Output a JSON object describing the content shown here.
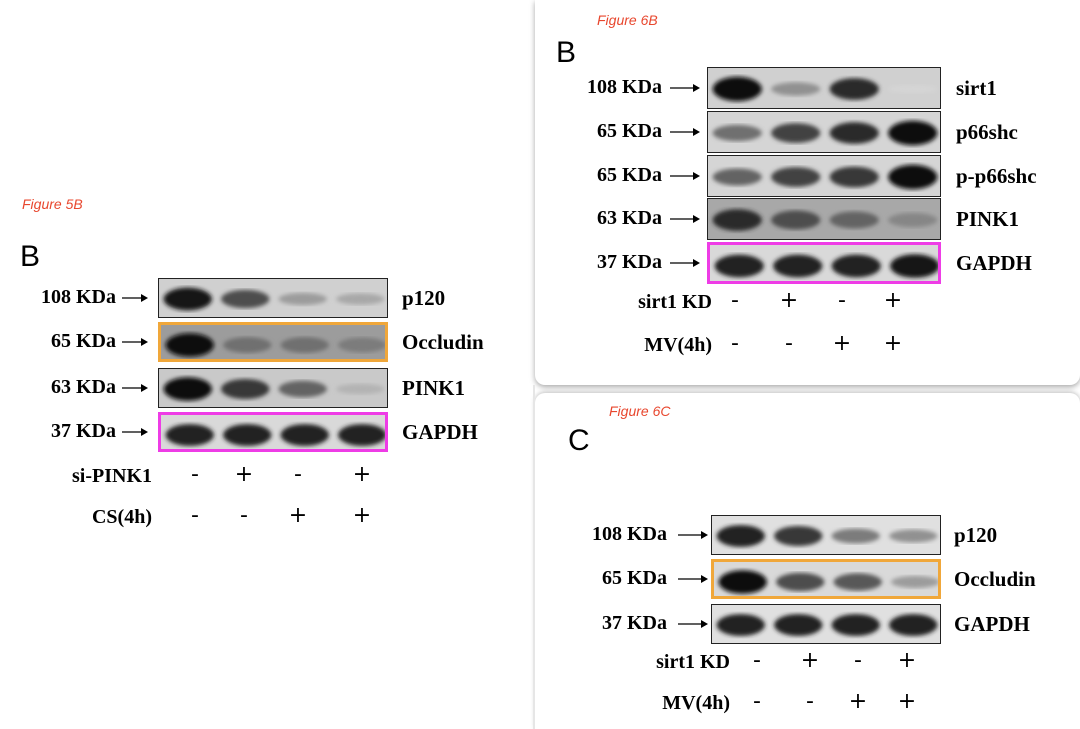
{
  "figure_5b": {
    "ref": "Figure 5B",
    "letter": "B",
    "rows": [
      {
        "kda": "108 KDa",
        "protein": "p120",
        "bands": [
          0.95,
          0.7,
          0.35,
          0.3
        ],
        "bg": 0.12,
        "highlight": "none"
      },
      {
        "kda": "65 KDa",
        "protein": "Occludin",
        "bands": [
          1.0,
          0.55,
          0.55,
          0.5
        ],
        "bg": 0.35,
        "highlight": "orange"
      },
      {
        "kda": "63 KDa",
        "protein": "PINK1",
        "bands": [
          1.0,
          0.8,
          0.6,
          0.25
        ],
        "bg": 0.15,
        "highlight": "none"
      },
      {
        "kda": "37 KDa",
        "protein": "GAPDH",
        "bands": [
          0.9,
          0.9,
          0.9,
          0.9
        ],
        "bg": 0.08,
        "highlight": "magenta"
      }
    ],
    "conditions": [
      {
        "label": "si-PINK1",
        "signs": [
          "-",
          "+",
          "-",
          "+"
        ]
      },
      {
        "label": "CS(4h)",
        "signs": [
          "-",
          "-",
          "+",
          "+"
        ]
      }
    ]
  },
  "figure_6b": {
    "ref": "Figure 6B",
    "letter": "B",
    "rows": [
      {
        "kda": "108 KDa",
        "protein": "sirt1",
        "bands": [
          1.0,
          0.4,
          0.85,
          0.1
        ],
        "bg": 0.12,
        "highlight": "none"
      },
      {
        "kda": "65 KDa",
        "protein": "p66shc",
        "bands": [
          0.55,
          0.75,
          0.85,
          1.0
        ],
        "bg": 0.1,
        "highlight": "none"
      },
      {
        "kda": "65 KDa",
        "protein": "p-p66shc",
        "bands": [
          0.6,
          0.75,
          0.8,
          1.0
        ],
        "bg": 0.1,
        "highlight": "none"
      },
      {
        "kda": "63 KDa",
        "protein": "PINK1",
        "bands": [
          0.85,
          0.7,
          0.6,
          0.45
        ],
        "bg": 0.3,
        "highlight": "none"
      },
      {
        "kda": "37 KDa",
        "protein": "GAPDH",
        "bands": [
          0.9,
          0.9,
          0.9,
          0.95
        ],
        "bg": 0.08,
        "highlight": "magenta"
      }
    ],
    "conditions": [
      {
        "label": "sirt1 KD",
        "signs": [
          "-",
          "+",
          "-",
          "+"
        ]
      },
      {
        "label": "MV(4h)",
        "signs": [
          "-",
          "-",
          "+",
          "+"
        ]
      }
    ]
  },
  "figure_6c": {
    "ref": "Figure 6C",
    "letter": "C",
    "rows": [
      {
        "kda": "108 KDa",
        "protein": "p120",
        "bands": [
          0.9,
          0.8,
          0.5,
          0.4
        ],
        "bg": 0.05,
        "highlight": "none"
      },
      {
        "kda": "65 KDa",
        "protein": "Occludin",
        "bands": [
          1.0,
          0.7,
          0.65,
          0.35
        ],
        "bg": 0.08,
        "highlight": "orange"
      },
      {
        "kda": "37 KDa",
        "protein": "GAPDH",
        "bands": [
          0.9,
          0.9,
          0.9,
          0.9
        ],
        "bg": 0.05,
        "highlight": "none"
      }
    ],
    "conditions": [
      {
        "label": "sirt1 KD",
        "signs": [
          "-",
          "+",
          "-",
          "+"
        ]
      },
      {
        "label": "MV(4h)",
        "signs": [
          "-",
          "-",
          "+",
          "+"
        ]
      }
    ]
  },
  "colors": {
    "highlight_orange": "#f0a73a",
    "highlight_magenta": "#ee3ce6",
    "figure_ref": "#e8472e"
  }
}
